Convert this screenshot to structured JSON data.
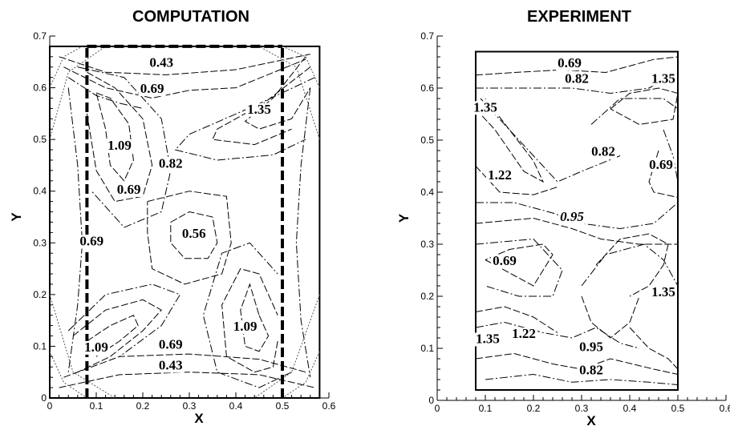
{
  "chart_data": [
    {
      "type": "contour",
      "title": "COMPUTATION",
      "xlabel": "X",
      "ylabel": "Y",
      "xlim": [
        0,
        0.6
      ],
      "ylim": [
        0,
        0.7
      ],
      "xticks": [
        "0",
        "0.1",
        "0.2",
        "0.3",
        "0.4",
        "0.5",
        "0.6"
      ],
      "yticks": [
        "0",
        "0.1",
        "0.2",
        "0.3",
        "0.4",
        "0.5",
        "0.6",
        "0.7"
      ],
      "dashed_boundaries_x": [
        0.08,
        0.5
      ],
      "dashed_boundary_y": 0.68,
      "contour_labels": [
        {
          "text": "0.43",
          "x": 0.24,
          "y": 0.64
        },
        {
          "text": "0.69",
          "x": 0.22,
          "y": 0.59
        },
        {
          "text": "1.35",
          "x": 0.45,
          "y": 0.55
        },
        {
          "text": "1.09",
          "x": 0.15,
          "y": 0.48
        },
        {
          "text": "0.82",
          "x": 0.26,
          "y": 0.445
        },
        {
          "text": "0.69",
          "x": 0.17,
          "y": 0.395
        },
        {
          "text": "0.56",
          "x": 0.31,
          "y": 0.31
        },
        {
          "text": "0.69",
          "x": 0.09,
          "y": 0.295
        },
        {
          "text": "1.09",
          "x": 0.42,
          "y": 0.13
        },
        {
          "text": "1.09",
          "x": 0.1,
          "y": 0.09
        },
        {
          "text": "0.69",
          "x": 0.26,
          "y": 0.095
        },
        {
          "text": "0.43",
          "x": 0.26,
          "y": 0.055
        }
      ]
    },
    {
      "type": "contour",
      "title": "EXPERIMENT",
      "xlabel": "X",
      "ylabel": "Y",
      "xlim": [
        0,
        0.6
      ],
      "ylim": [
        0,
        0.7
      ],
      "xticks": [
        "0",
        "0.1",
        "0.2",
        "0.3",
        "0.4",
        "0.5",
        "0.6"
      ],
      "yticks": [
        "0",
        "0.1",
        "0.2",
        "0.3",
        "0.4",
        "0.5",
        "0.6",
        "0.7"
      ],
      "data_region": {
        "xmin": 0.08,
        "xmax": 0.5,
        "ymin": 0.02,
        "ymax": 0.67
      },
      "contour_labels": [
        {
          "text": "0.69",
          "x": 0.275,
          "y": 0.64
        },
        {
          "text": "0.82",
          "x": 0.29,
          "y": 0.61
        },
        {
          "text": "1.35",
          "x": 0.47,
          "y": 0.61
        },
        {
          "text": "1.35",
          "x": 0.1,
          "y": 0.555
        },
        {
          "text": "0.82",
          "x": 0.345,
          "y": 0.47
        },
        {
          "text": "0.69",
          "x": 0.465,
          "y": 0.445
        },
        {
          "text": "1.22",
          "x": 0.13,
          "y": 0.425
        },
        {
          "text": "0.95",
          "x": 0.28,
          "y": 0.345
        },
        {
          "text": "0.69",
          "x": 0.14,
          "y": 0.26
        },
        {
          "text": "1.35",
          "x": 0.47,
          "y": 0.2
        },
        {
          "text": "1.35",
          "x": 0.105,
          "y": 0.11
        },
        {
          "text": "1.22",
          "x": 0.18,
          "y": 0.12
        },
        {
          "text": "0.95",
          "x": 0.32,
          "y": 0.095
        },
        {
          "text": "0.82",
          "x": 0.32,
          "y": 0.05
        }
      ]
    }
  ]
}
